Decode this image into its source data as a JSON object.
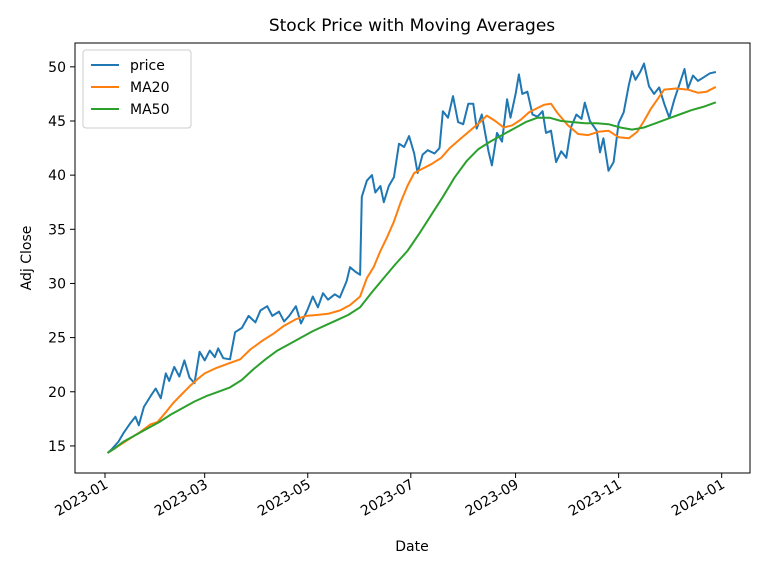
{
  "chart_data": {
    "type": "line",
    "title": "Stock Price with Moving Averages",
    "xlabel": "Date",
    "ylabel": "Adj Close",
    "xlim": [
      "2023-01-01",
      "2023-12-31"
    ],
    "ylim": [
      12.5,
      52.2
    ],
    "x_ticks": [
      "2023-01",
      "2023-03",
      "2023-05",
      "2023-07",
      "2023-09",
      "2023-11",
      "2024-01"
    ],
    "y_ticks": [
      15,
      20,
      25,
      30,
      35,
      40,
      45,
      50
    ],
    "grid": false,
    "legend_position": "top-left",
    "series": [
      {
        "name": "price",
        "color": "#1f77b4",
        "points": [
          [
            "2023-01-03",
            14.4
          ],
          [
            "2023-01-05",
            14.7
          ],
          [
            "2023-01-09",
            15.4
          ],
          [
            "2023-01-12",
            16.2
          ],
          [
            "2023-01-16",
            17.1
          ],
          [
            "2023-01-19",
            17.7
          ],
          [
            "2023-01-21",
            16.9
          ],
          [
            "2023-01-24",
            18.6
          ],
          [
            "2023-01-28",
            19.6
          ],
          [
            "2023-01-31",
            20.3
          ],
          [
            "2023-02-03",
            19.4
          ],
          [
            "2023-02-06",
            21.7
          ],
          [
            "2023-02-08",
            21.0
          ],
          [
            "2023-02-11",
            22.3
          ],
          [
            "2023-02-14",
            21.4
          ],
          [
            "2023-02-17",
            22.9
          ],
          [
            "2023-02-20",
            21.3
          ],
          [
            "2023-02-23",
            20.8
          ],
          [
            "2023-02-26",
            23.7
          ],
          [
            "2023-03-01",
            22.9
          ],
          [
            "2023-03-04",
            23.8
          ],
          [
            "2023-03-07",
            23.2
          ],
          [
            "2023-03-09",
            24.0
          ],
          [
            "2023-03-12",
            23.1
          ],
          [
            "2023-03-16",
            23.0
          ],
          [
            "2023-03-19",
            25.5
          ],
          [
            "2023-03-23",
            25.9
          ],
          [
            "2023-03-27",
            27.0
          ],
          [
            "2023-03-31",
            26.4
          ],
          [
            "2023-04-03",
            27.5
          ],
          [
            "2023-04-07",
            27.9
          ],
          [
            "2023-04-10",
            27.0
          ],
          [
            "2023-04-14",
            27.4
          ],
          [
            "2023-04-17",
            26.5
          ],
          [
            "2023-04-20",
            27.0
          ],
          [
            "2023-04-24",
            27.9
          ],
          [
            "2023-04-27",
            26.3
          ],
          [
            "2023-05-01",
            27.6
          ],
          [
            "2023-05-04",
            28.8
          ],
          [
            "2023-05-07",
            27.8
          ],
          [
            "2023-05-10",
            29.1
          ],
          [
            "2023-05-13",
            28.5
          ],
          [
            "2023-05-17",
            29.0
          ],
          [
            "2023-05-20",
            28.7
          ],
          [
            "2023-05-24",
            30.2
          ],
          [
            "2023-05-26",
            31.5
          ],
          [
            "2023-05-29",
            31.1
          ],
          [
            "2023-06-01",
            30.8
          ],
          [
            "2023-06-02",
            38.0
          ],
          [
            "2023-06-05",
            39.5
          ],
          [
            "2023-06-08",
            40.0
          ],
          [
            "2023-06-10",
            38.4
          ],
          [
            "2023-06-13",
            39.0
          ],
          [
            "2023-06-15",
            37.5
          ],
          [
            "2023-06-18",
            39.0
          ],
          [
            "2023-06-21",
            39.8
          ],
          [
            "2023-06-24",
            42.9
          ],
          [
            "2023-06-27",
            42.6
          ],
          [
            "2023-06-30",
            43.6
          ],
          [
            "2023-07-03",
            42.0
          ],
          [
            "2023-07-05",
            40.2
          ],
          [
            "2023-07-08",
            41.9
          ],
          [
            "2023-07-11",
            42.3
          ],
          [
            "2023-07-15",
            42.0
          ],
          [
            "2023-07-18",
            42.5
          ],
          [
            "2023-07-20",
            45.9
          ],
          [
            "2023-07-23",
            45.3
          ],
          [
            "2023-07-26",
            47.3
          ],
          [
            "2023-07-29",
            44.9
          ],
          [
            "2023-08-01",
            44.7
          ],
          [
            "2023-08-04",
            46.6
          ],
          [
            "2023-08-07",
            46.6
          ],
          [
            "2023-08-09",
            44.3
          ],
          [
            "2023-08-12",
            45.6
          ],
          [
            "2023-08-16",
            42.2
          ],
          [
            "2023-08-18",
            40.9
          ],
          [
            "2023-08-21",
            43.9
          ],
          [
            "2023-08-24",
            43.1
          ],
          [
            "2023-08-27",
            47.0
          ],
          [
            "2023-08-29",
            45.3
          ],
          [
            "2023-09-01",
            47.5
          ],
          [
            "2023-09-03",
            49.3
          ],
          [
            "2023-09-05",
            47.5
          ],
          [
            "2023-09-08",
            47.7
          ],
          [
            "2023-09-11",
            45.6
          ],
          [
            "2023-09-14",
            45.4
          ],
          [
            "2023-09-17",
            45.9
          ],
          [
            "2023-09-19",
            43.9
          ],
          [
            "2023-09-22",
            44.1
          ],
          [
            "2023-09-25",
            41.2
          ],
          [
            "2023-09-28",
            42.2
          ],
          [
            "2023-10-01",
            41.6
          ],
          [
            "2023-10-04",
            44.5
          ],
          [
            "2023-10-07",
            45.6
          ],
          [
            "2023-10-10",
            45.2
          ],
          [
            "2023-10-12",
            46.7
          ],
          [
            "2023-10-15",
            45.0
          ],
          [
            "2023-10-19",
            44.1
          ],
          [
            "2023-10-21",
            42.1
          ],
          [
            "2023-10-23",
            43.4
          ],
          [
            "2023-10-26",
            40.4
          ],
          [
            "2023-10-29",
            41.2
          ],
          [
            "2023-11-01",
            44.8
          ],
          [
            "2023-11-04",
            45.8
          ],
          [
            "2023-11-07",
            48.3
          ],
          [
            "2023-11-09",
            49.6
          ],
          [
            "2023-11-11",
            48.8
          ],
          [
            "2023-11-14",
            49.6
          ],
          [
            "2023-11-16",
            50.3
          ],
          [
            "2023-11-19",
            48.2
          ],
          [
            "2023-11-22",
            47.5
          ],
          [
            "2023-11-25",
            48.1
          ],
          [
            "2023-11-28",
            46.6
          ],
          [
            "2023-12-01",
            45.3
          ],
          [
            "2023-12-04",
            47.0
          ],
          [
            "2023-12-07",
            48.4
          ],
          [
            "2023-12-10",
            49.8
          ],
          [
            "2023-12-12",
            48.0
          ],
          [
            "2023-12-15",
            49.2
          ],
          [
            "2023-12-18",
            48.7
          ],
          [
            "2023-12-21",
            49.0
          ],
          [
            "2023-12-25",
            49.4
          ],
          [
            "2023-12-28",
            49.5
          ]
        ]
      },
      {
        "name": "MA20",
        "color": "#ff7f0e",
        "points": [
          [
            "2023-01-03",
            14.4
          ],
          [
            "2023-01-05",
            14.6
          ],
          [
            "2023-01-10",
            15.1
          ],
          [
            "2023-01-16",
            15.7
          ],
          [
            "2023-01-22",
            16.3
          ],
          [
            "2023-01-28",
            17.0
          ],
          [
            "2023-02-01",
            17.2
          ],
          [
            "2023-02-06",
            18.1
          ],
          [
            "2023-02-10",
            18.9
          ],
          [
            "2023-02-15",
            19.7
          ],
          [
            "2023-02-20",
            20.5
          ],
          [
            "2023-02-25",
            21.2
          ],
          [
            "2023-03-01",
            21.7
          ],
          [
            "2023-03-08",
            22.2
          ],
          [
            "2023-03-15",
            22.6
          ],
          [
            "2023-03-22",
            23.0
          ],
          [
            "2023-03-28",
            23.9
          ],
          [
            "2023-04-04",
            24.7
          ],
          [
            "2023-04-11",
            25.4
          ],
          [
            "2023-04-17",
            26.1
          ],
          [
            "2023-04-24",
            26.7
          ],
          [
            "2023-04-30",
            27.0
          ],
          [
            "2023-05-07",
            27.1
          ],
          [
            "2023-05-13",
            27.2
          ],
          [
            "2023-05-20",
            27.5
          ],
          [
            "2023-05-26",
            28.0
          ],
          [
            "2023-06-01",
            28.8
          ],
          [
            "2023-06-05",
            30.5
          ],
          [
            "2023-06-09",
            31.5
          ],
          [
            "2023-06-13",
            33.0
          ],
          [
            "2023-06-17",
            34.3
          ],
          [
            "2023-06-21",
            35.7
          ],
          [
            "2023-06-25",
            37.5
          ],
          [
            "2023-06-29",
            39.0
          ],
          [
            "2023-07-03",
            40.2
          ],
          [
            "2023-07-08",
            40.6
          ],
          [
            "2023-07-13",
            41.0
          ],
          [
            "2023-07-19",
            41.6
          ],
          [
            "2023-07-24",
            42.5
          ],
          [
            "2023-07-30",
            43.3
          ],
          [
            "2023-08-05",
            44.1
          ],
          [
            "2023-08-11",
            44.9
          ],
          [
            "2023-08-15",
            45.5
          ],
          [
            "2023-08-20",
            45.0
          ],
          [
            "2023-08-25",
            44.4
          ],
          [
            "2023-08-30",
            44.6
          ],
          [
            "2023-09-04",
            45.1
          ],
          [
            "2023-09-09",
            45.8
          ],
          [
            "2023-09-14",
            46.2
          ],
          [
            "2023-09-18",
            46.5
          ],
          [
            "2023-09-22",
            46.6
          ],
          [
            "2023-09-26",
            45.7
          ],
          [
            "2023-10-02",
            44.6
          ],
          [
            "2023-10-08",
            43.8
          ],
          [
            "2023-10-14",
            43.7
          ],
          [
            "2023-10-20",
            44.0
          ],
          [
            "2023-10-26",
            44.1
          ],
          [
            "2023-11-01",
            43.5
          ],
          [
            "2023-11-07",
            43.4
          ],
          [
            "2023-11-12",
            44.0
          ],
          [
            "2023-11-16",
            45.0
          ],
          [
            "2023-11-20",
            46.1
          ],
          [
            "2023-11-24",
            47.0
          ],
          [
            "2023-11-28",
            47.9
          ],
          [
            "2023-12-05",
            48.0
          ],
          [
            "2023-12-12",
            47.9
          ],
          [
            "2023-12-18",
            47.6
          ],
          [
            "2023-12-23",
            47.7
          ],
          [
            "2023-12-28",
            48.1
          ]
        ]
      },
      {
        "name": "MA50",
        "color": "#2ca02c",
        "points": [
          [
            "2023-01-03",
            14.4
          ],
          [
            "2023-01-07",
            14.8
          ],
          [
            "2023-01-12",
            15.4
          ],
          [
            "2023-01-19",
            16.0
          ],
          [
            "2023-01-26",
            16.6
          ],
          [
            "2023-02-02",
            17.2
          ],
          [
            "2023-02-09",
            17.9
          ],
          [
            "2023-02-16",
            18.5
          ],
          [
            "2023-02-23",
            19.1
          ],
          [
            "2023-03-02",
            19.6
          ],
          [
            "2023-03-09",
            20.0
          ],
          [
            "2023-03-16",
            20.4
          ],
          [
            "2023-03-23",
            21.1
          ],
          [
            "2023-03-30",
            22.1
          ],
          [
            "2023-04-06",
            23.0
          ],
          [
            "2023-04-13",
            23.8
          ],
          [
            "2023-04-20",
            24.4
          ],
          [
            "2023-04-27",
            25.0
          ],
          [
            "2023-05-04",
            25.6
          ],
          [
            "2023-05-11",
            26.1
          ],
          [
            "2023-05-18",
            26.6
          ],
          [
            "2023-05-25",
            27.1
          ],
          [
            "2023-06-01",
            27.8
          ],
          [
            "2023-06-08",
            29.2
          ],
          [
            "2023-06-15",
            30.5
          ],
          [
            "2023-06-22",
            31.8
          ],
          [
            "2023-06-29",
            33.0
          ],
          [
            "2023-07-06",
            34.6
          ],
          [
            "2023-07-13",
            36.3
          ],
          [
            "2023-07-20",
            38.0
          ],
          [
            "2023-07-27",
            39.8
          ],
          [
            "2023-08-03",
            41.3
          ],
          [
            "2023-08-10",
            42.4
          ],
          [
            "2023-08-17",
            43.1
          ],
          [
            "2023-08-24",
            43.7
          ],
          [
            "2023-08-31",
            44.3
          ],
          [
            "2023-09-07",
            44.9
          ],
          [
            "2023-09-14",
            45.3
          ],
          [
            "2023-09-21",
            45.3
          ],
          [
            "2023-09-28",
            45.0
          ],
          [
            "2023-10-05",
            44.9
          ],
          [
            "2023-10-12",
            44.8
          ],
          [
            "2023-10-19",
            44.8
          ],
          [
            "2023-10-26",
            44.7
          ],
          [
            "2023-11-02",
            44.4
          ],
          [
            "2023-11-09",
            44.2
          ],
          [
            "2023-11-16",
            44.4
          ],
          [
            "2023-11-23",
            44.8
          ],
          [
            "2023-11-30",
            45.2
          ],
          [
            "2023-12-07",
            45.6
          ],
          [
            "2023-12-14",
            46.0
          ],
          [
            "2023-12-21",
            46.3
          ],
          [
            "2023-12-28",
            46.7
          ]
        ]
      }
    ]
  }
}
